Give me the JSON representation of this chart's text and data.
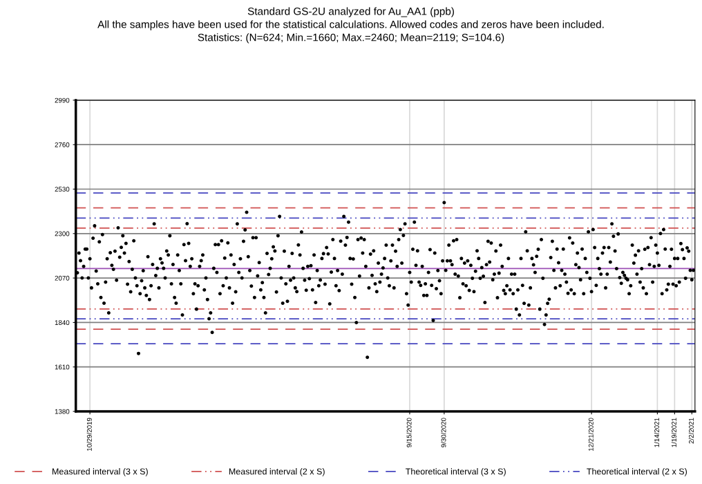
{
  "chart_data": {
    "type": "scatter",
    "title": "Standard GS-2U analyzed for Au_AA1 (ppb)",
    "subtitle": "All the samples have been used for the statistical calculations. Allowed codes and zeros have been included.",
    "annotations": [
      "Statistics: (N=624; Min.=1660; Max.=2460; Mean=2119; S=104.6)"
    ],
    "series": [
      {
        "color": "#000000",
        "values": [
          2097,
          2199,
          2160,
          2070,
          2130,
          2220,
          2220,
          2070,
          2170,
          2019,
          2276,
          2340,
          2106,
          2040,
          2257,
          1969,
          2295,
          1940,
          2049,
          2170,
          1890,
          2201,
          2136,
          2115,
          2209,
          2059,
          2330,
          2178,
          2229,
          2289,
          2199,
          2249,
          2038,
          2155,
          1999,
          2115,
          2263,
          2070,
          2030,
          1680,
          1989,
          2056,
          2108,
          2019,
          1980,
          2180,
          1959,
          2030,
          2140,
          2350,
          2083,
          2120,
          2019,
          2170,
          2148,
          2120,
          2070,
          2210,
          2189,
          2289,
          2040,
          2140,
          1969,
          1940,
          2189,
          2109,
          2040,
          1879,
          2243,
          2160,
          2351,
          2249,
          2130,
          2170,
          1989,
          2040,
          1909,
          2030,
          2130,
          2160,
          2189,
          2009,
          2070,
          1959,
          1859,
          1890,
          1789,
          2120,
          2243,
          2099,
          2243,
          1989,
          2263,
          2030,
          2173,
          2070,
          2252,
          2019,
          2189,
          1940,
          2140,
          1999,
          2350,
          2099,
          2170,
          2070,
          2260,
          2319,
          2410,
          2180,
          2109,
          2028,
          2279,
          1969,
          2279,
          2081,
          2150,
          2009,
          2046,
          1969,
          1890,
          2197,
          2088,
          2120,
          2170,
          2231,
          2210,
          1998,
          2289,
          2389,
          2070,
          1940,
          2209,
          2040,
          1950,
          2130,
          2059,
          2197,
          2070,
          2019,
          2000,
          2241,
          2189,
          2308,
          2120,
          2059,
          2007,
          2130,
          2067,
          2134,
          2009,
          2189,
          1943,
          2109,
          2030,
          2060,
          2171,
          2196,
          2038,
          2228,
          2195,
          1936,
          2101,
          2269,
          2171,
          2030,
          2109,
          2005,
          2261,
          2090,
          2389,
          2240,
          2280,
          2359,
          2171,
          2038,
          2169,
          1969,
          1840,
          2269,
          2080,
          2277,
          2199,
          2269,
          2130,
          1660,
          2019,
          2194,
          2084,
          2211,
          2040,
          2000,
          2147,
          2049,
          2090,
          2122,
          2171,
          2240,
          2070,
          2030,
          2159,
          2240,
          2019,
          2209,
          2130,
          2269,
          2321,
          2147,
          2290,
          2350,
          1989,
          1930,
          2099,
          2049,
          2219,
          2359,
          2136,
          2211,
          2049,
          2032,
          2130,
          1980,
          2040,
          1980,
          2099,
          2217,
          2032,
          1850,
          2199,
          2015,
          2109,
          2056,
          1989,
          2159,
          2460,
          2110,
          2159,
          2240,
          2159,
          2139,
          2263,
          2090,
          2269,
          2080,
          1968,
          2171,
          2040,
          2147,
          2030,
          2159,
          2006,
          2136,
          2069,
          2000,
          2105,
          2211,
          2171,
          2069,
          2124,
          2079,
          1943,
          2139,
          2260,
          2153,
          2251,
          2061,
          2090,
          2210,
          1968,
          2095,
          2240,
          2130,
          2006,
          1989,
          2030,
          2171,
          2009,
          2090,
          1989,
          2090,
          1909,
          2009,
          1879,
          2171,
          2032,
          1939,
          2309,
          2211,
          1930,
          2019,
          2171,
          2138,
          2099,
          2182,
          2219,
          1909,
          2269,
          2069,
          1830,
          1879,
          1939,
          1960,
          2176,
          2260,
          2110,
          2019,
          2220,
          2149,
          2030,
          2110,
          2220,
          2090,
          2049,
          1991,
          2278,
          2009,
          2251,
          1989,
          2139,
          2199,
          2124,
          2061,
          2220,
          1989,
          2171,
          2099,
          2309,
          2069,
          2000,
          2321,
          2228,
          2032,
          2171,
          2119,
          2090,
          2199,
          2228,
          2019,
          2090,
          2228,
          2153,
          2350,
          2286,
          2210,
          2119,
          2298,
          2072,
          2043,
          2099,
          2084,
          2069,
          2061,
          1989,
          2030,
          2240,
          2147,
          2188,
          2090,
          2211,
          2049,
          2119,
          2019,
          2219,
          1989,
          2228,
          2139,
          2279,
          2049,
          2130,
          2240,
          2199,
          2136,
          2300,
          1989,
          2321,
          2220,
          2009,
          2038,
          2130,
          2219,
          2038,
          2171,
          2030,
          2171,
          2049,
          2248,
          2217,
          2171,
          2069,
          2226,
          2209,
          2110,
          2061,
          2110
        ]
      }
    ],
    "categories": [
      null,
      null,
      null,
      null,
      null,
      null,
      null,
      null,
      "10/29/2019",
      null,
      null,
      null,
      null,
      null,
      null,
      null,
      null,
      null,
      null,
      null,
      null,
      null,
      null,
      null,
      null,
      null,
      null,
      null,
      null,
      null,
      null,
      null,
      null,
      null,
      null,
      null,
      null,
      null,
      null,
      null,
      null,
      null,
      null,
      null,
      null,
      null,
      null,
      null,
      null,
      null,
      null,
      null,
      null,
      null,
      null,
      null,
      null,
      null,
      null,
      null,
      null,
      null,
      null,
      null,
      null,
      null,
      null,
      null,
      null,
      null,
      null,
      null,
      null,
      null,
      null,
      null,
      null,
      null,
      null,
      null,
      null,
      null,
      null,
      null,
      null,
      null,
      null,
      null,
      null,
      null,
      null,
      null,
      null,
      null,
      null,
      null,
      null,
      null,
      null,
      null,
      null,
      null,
      null,
      null,
      null,
      null,
      null,
      null,
      null,
      null,
      null,
      null,
      null,
      null,
      null,
      null,
      null,
      null,
      null,
      null,
      null,
      null,
      null,
      null,
      null,
      null,
      null,
      null,
      null,
      null,
      null,
      null,
      null,
      null,
      null,
      null,
      null,
      null,
      null,
      null,
      null,
      null,
      null,
      null,
      null,
      null,
      null,
      null,
      null,
      null,
      null,
      null,
      null,
      null,
      null,
      null,
      null,
      null,
      null,
      null,
      null,
      null,
      null,
      null,
      null,
      null,
      null,
      null,
      null,
      null,
      null,
      null,
      null,
      null,
      null,
      null,
      null,
      null,
      null,
      null,
      null,
      null,
      null,
      null,
      null,
      null,
      null,
      null,
      null,
      null,
      null,
      null,
      null,
      null,
      null,
      null,
      null,
      null,
      null,
      null,
      null,
      null,
      null,
      null,
      null,
      null,
      null,
      null,
      null,
      null,
      null,
      null,
      "9/15/2020",
      null,
      null,
      null,
      null,
      null,
      null,
      null,
      null,
      null,
      null,
      null,
      null,
      null,
      null,
      null,
      null,
      null,
      null,
      null,
      null,
      null,
      "9/30/2020",
      null,
      null,
      null,
      null,
      null,
      null,
      null,
      null,
      null,
      null,
      null,
      null,
      null,
      null,
      null,
      null,
      null,
      null,
      null,
      null,
      null,
      null,
      null,
      null,
      null,
      null,
      null,
      null,
      null,
      null,
      null,
      null,
      null,
      null,
      null,
      null,
      null,
      null,
      null,
      null,
      null,
      null,
      null,
      null,
      null,
      null,
      null,
      null,
      null,
      null,
      null,
      null,
      null,
      null,
      null,
      null,
      null,
      null,
      null,
      null,
      null,
      null,
      null,
      null,
      null,
      null,
      null,
      null,
      null,
      null,
      null,
      null,
      null,
      null,
      null,
      null,
      null,
      null,
      null,
      null,
      null,
      null,
      null,
      null,
      null,
      null,
      null,
      null,
      null,
      null,
      null,
      null,
      null,
      "12/21/2020",
      null,
      null,
      null,
      null,
      null,
      null,
      null,
      null,
      null,
      null,
      null,
      null,
      null,
      null,
      null,
      null,
      null,
      null,
      null,
      null,
      null,
      null,
      null,
      null,
      null,
      null,
      null,
      null,
      null,
      null,
      null,
      null,
      null,
      null,
      null,
      null,
      null,
      null,
      null,
      null,
      null,
      "1/14/2021",
      null,
      null,
      null,
      null,
      null,
      null,
      null,
      null,
      null,
      null,
      "1/19/2021",
      null,
      null,
      null,
      null,
      null,
      null,
      null,
      null,
      null,
      null,
      "2/2/2021",
      null
    ],
    "ylim": [
      1380,
      2990
    ],
    "yticks": [
      1380,
      1610,
      1840,
      2070,
      2300,
      2530,
      2760,
      2990
    ],
    "grid": true,
    "marker": "circle",
    "legend": "bottom",
    "ref_lines": [
      {
        "axis": "y",
        "value": 2119,
        "color": "#9b4fb5",
        "line_style": "solid"
      },
      {
        "axis": "y",
        "value": 2432.8,
        "color": "#d05050",
        "line_style": "dashed",
        "label": "Measured interval (3 x S)"
      },
      {
        "axis": "y",
        "value": 1805.2,
        "color": "#d05050",
        "line_style": "dashed"
      },
      {
        "axis": "y",
        "value": 2328.2,
        "color": "#d05050",
        "line_style": "dashdot",
        "label": "Measured interval (2 x S)"
      },
      {
        "axis": "y",
        "value": 1909.8,
        "color": "#d05050",
        "line_style": "dashdot"
      },
      {
        "axis": "y",
        "value": 2510,
        "color": "#4545c0",
        "line_style": "dashed",
        "label": "Theoretical interval (3 x S)"
      },
      {
        "axis": "y",
        "value": 1730,
        "color": "#4545c0",
        "line_style": "dashed"
      },
      {
        "axis": "y",
        "value": 2380,
        "color": "#4545c0",
        "line_style": "dashdot",
        "label": "Theoretical interval (2 x S)"
      },
      {
        "axis": "y",
        "value": 1859,
        "color": "#4545c0",
        "line_style": "dashdot"
      }
    ]
  }
}
